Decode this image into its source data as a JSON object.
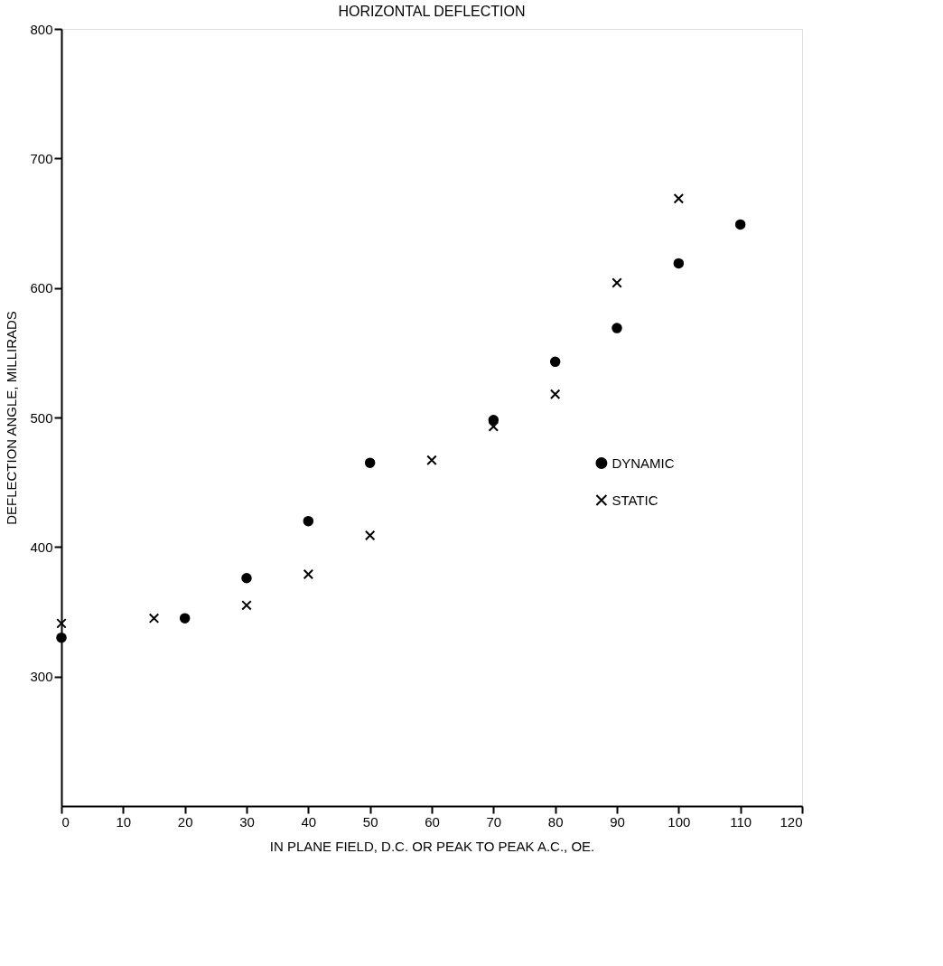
{
  "chart_data": {
    "type": "scatter",
    "title": "HORIZONTAL DEFLECTION",
    "xlabel": "IN PLANE FIELD, D.C. OR PEAK TO PEAK A.C., OE.",
    "ylabel": "DEFLECTION ANGLE, MILLIRADS",
    "xlim": [
      0,
      120
    ],
    "xticks": [
      0,
      10,
      20,
      30,
      40,
      50,
      60,
      70,
      80,
      90,
      100,
      110,
      120
    ],
    "ylim": [
      200,
      800
    ],
    "yticks": [
      300,
      400,
      500,
      600,
      700,
      800
    ],
    "grid": false,
    "legend": "right",
    "series": [
      {
        "name": "DYNAMIC",
        "color": "#000000",
        "marker": "circle",
        "x": [
          0,
          20,
          30,
          40,
          50,
          70,
          80,
          90,
          100,
          110
        ],
        "values": [
          330,
          345,
          376,
          420,
          465,
          498,
          543,
          569,
          619,
          649
        ]
      },
      {
        "name": "STATIC",
        "color": "#000000",
        "marker": "cross",
        "x": [
          0,
          15,
          30,
          40,
          50,
          60,
          70,
          80,
          90,
          100
        ],
        "values": [
          341,
          345,
          355,
          379,
          409,
          467,
          493,
          518,
          604,
          669
        ]
      }
    ]
  }
}
